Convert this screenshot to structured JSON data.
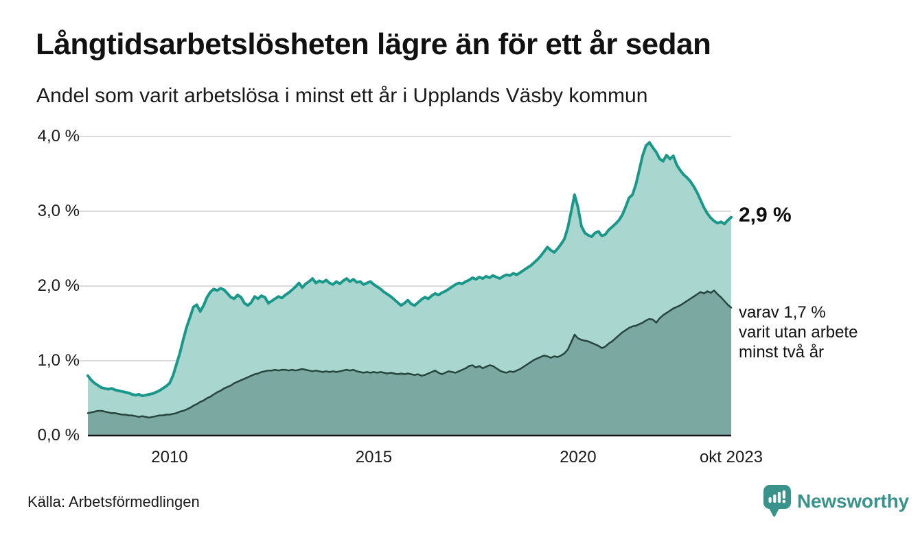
{
  "chart_data": {
    "type": "area",
    "title": "Långtidsarbetslösheten lägre än för ett år sedan",
    "subtitle": "Andel som varit arbetslösa i minst ett år i Upplands Väsby kommun",
    "unit": "%",
    "frequency": "monthly",
    "x_start": "2008-01",
    "x_end": "2023-10",
    "ylim": [
      0,
      4.2
    ],
    "grid": "horizontal",
    "colors": {
      "grid": "#dbdbdb",
      "axis": "#111111"
    },
    "y_ticks": [
      {
        "value": 0,
        "label": "0,0 %"
      },
      {
        "value": 1,
        "label": "1,0 %"
      },
      {
        "value": 2,
        "label": "2,0 %"
      },
      {
        "value": 3,
        "label": "3,0 %"
      },
      {
        "value": 4,
        "label": "4,0 %"
      }
    ],
    "x_ticks": [
      {
        "month_index": 24,
        "label": "2010"
      },
      {
        "month_index": 84,
        "label": "2015"
      },
      {
        "month_index": 144,
        "label": "2020"
      },
      {
        "month_index": 189,
        "label": "okt 2023"
      }
    ],
    "annotations": {
      "latest_total": "2,9 %",
      "secondary_line1": "varav 1,7 %",
      "secondary_line2": "varit utan arbete",
      "secondary_line3": "minst två år"
    },
    "series": [
      {
        "id": "arbetslosa-minst-ett-ar",
        "line_color": "#19988a",
        "fill_color": "#a9d6ce",
        "line_width": 4,
        "values": [
          0.8,
          0.74,
          0.7,
          0.67,
          0.64,
          0.63,
          0.62,
          0.63,
          0.61,
          0.6,
          0.59,
          0.58,
          0.57,
          0.55,
          0.54,
          0.55,
          0.53,
          0.54,
          0.55,
          0.56,
          0.58,
          0.6,
          0.63,
          0.66,
          0.7,
          0.8,
          0.95,
          1.1,
          1.28,
          1.45,
          1.58,
          1.72,
          1.75,
          1.66,
          1.74,
          1.85,
          1.92,
          1.96,
          1.94,
          1.97,
          1.95,
          1.9,
          1.85,
          1.83,
          1.88,
          1.85,
          1.77,
          1.74,
          1.78,
          1.86,
          1.83,
          1.87,
          1.85,
          1.77,
          1.8,
          1.83,
          1.86,
          1.84,
          1.88,
          1.91,
          1.95,
          1.99,
          2.04,
          1.98,
          2.03,
          2.06,
          2.1,
          2.04,
          2.07,
          2.05,
          2.08,
          2.04,
          2.02,
          2.06,
          2.03,
          2.07,
          2.1,
          2.06,
          2.09,
          2.05,
          2.06,
          2.02,
          2.04,
          2.06,
          2.02,
          1.99,
          1.96,
          1.92,
          1.89,
          1.86,
          1.82,
          1.78,
          1.74,
          1.77,
          1.81,
          1.76,
          1.74,
          1.78,
          1.82,
          1.85,
          1.83,
          1.87,
          1.9,
          1.88,
          1.91,
          1.93,
          1.96,
          1.99,
          2.02,
          2.04,
          2.03,
          2.06,
          2.08,
          2.11,
          2.09,
          2.12,
          2.1,
          2.13,
          2.11,
          2.14,
          2.12,
          2.1,
          2.13,
          2.15,
          2.14,
          2.17,
          2.15,
          2.18,
          2.21,
          2.24,
          2.27,
          2.31,
          2.35,
          2.4,
          2.46,
          2.52,
          2.48,
          2.45,
          2.5,
          2.56,
          2.63,
          2.78,
          3.0,
          3.22,
          3.05,
          2.8,
          2.71,
          2.68,
          2.66,
          2.71,
          2.73,
          2.67,
          2.69,
          2.75,
          2.79,
          2.83,
          2.88,
          2.95,
          3.06,
          3.18,
          3.22,
          3.36,
          3.55,
          3.75,
          3.88,
          3.92,
          3.85,
          3.79,
          3.7,
          3.67,
          3.75,
          3.7,
          3.74,
          3.62,
          3.55,
          3.49,
          3.45,
          3.4,
          3.33,
          3.25,
          3.15,
          3.05,
          2.97,
          2.91,
          2.87,
          2.84,
          2.86,
          2.83,
          2.88,
          2.92
        ]
      },
      {
        "id": "arbetslosa-minst-tva-ar",
        "line_color": "#26453f",
        "fill_color": "#7ba8a0",
        "line_width": 2.5,
        "values": [
          0.3,
          0.31,
          0.32,
          0.33,
          0.33,
          0.32,
          0.31,
          0.3,
          0.3,
          0.29,
          0.28,
          0.28,
          0.27,
          0.27,
          0.26,
          0.25,
          0.26,
          0.25,
          0.24,
          0.25,
          0.26,
          0.27,
          0.27,
          0.28,
          0.28,
          0.29,
          0.3,
          0.32,
          0.33,
          0.35,
          0.37,
          0.4,
          0.42,
          0.45,
          0.47,
          0.5,
          0.52,
          0.55,
          0.58,
          0.6,
          0.63,
          0.65,
          0.67,
          0.7,
          0.72,
          0.74,
          0.76,
          0.78,
          0.8,
          0.82,
          0.83,
          0.85,
          0.86,
          0.87,
          0.87,
          0.88,
          0.87,
          0.88,
          0.88,
          0.87,
          0.88,
          0.87,
          0.88,
          0.89,
          0.88,
          0.87,
          0.86,
          0.87,
          0.86,
          0.85,
          0.86,
          0.85,
          0.86,
          0.85,
          0.86,
          0.87,
          0.88,
          0.87,
          0.88,
          0.86,
          0.85,
          0.84,
          0.85,
          0.84,
          0.85,
          0.84,
          0.85,
          0.84,
          0.83,
          0.84,
          0.83,
          0.82,
          0.83,
          0.82,
          0.83,
          0.82,
          0.81,
          0.82,
          0.8,
          0.81,
          0.83,
          0.85,
          0.87,
          0.84,
          0.82,
          0.84,
          0.86,
          0.85,
          0.84,
          0.86,
          0.88,
          0.9,
          0.93,
          0.94,
          0.91,
          0.93,
          0.9,
          0.92,
          0.94,
          0.93,
          0.9,
          0.87,
          0.85,
          0.84,
          0.86,
          0.85,
          0.87,
          0.89,
          0.92,
          0.95,
          0.98,
          1.01,
          1.03,
          1.05,
          1.07,
          1.06,
          1.04,
          1.06,
          1.05,
          1.07,
          1.1,
          1.15,
          1.25,
          1.35,
          1.3,
          1.28,
          1.27,
          1.26,
          1.24,
          1.22,
          1.2,
          1.17,
          1.19,
          1.23,
          1.26,
          1.3,
          1.34,
          1.38,
          1.41,
          1.44,
          1.46,
          1.47,
          1.49,
          1.51,
          1.54,
          1.56,
          1.55,
          1.51,
          1.57,
          1.61,
          1.64,
          1.67,
          1.7,
          1.72,
          1.74,
          1.77,
          1.8,
          1.83,
          1.86,
          1.89,
          1.92,
          1.9,
          1.93,
          1.91,
          1.94,
          1.89,
          1.85,
          1.8,
          1.75,
          1.71
        ]
      }
    ]
  },
  "source": {
    "label": "Källa: Arbetsförmedlingen"
  },
  "branding": {
    "wordmark": "Newsworthy",
    "color": "#3a938b"
  }
}
